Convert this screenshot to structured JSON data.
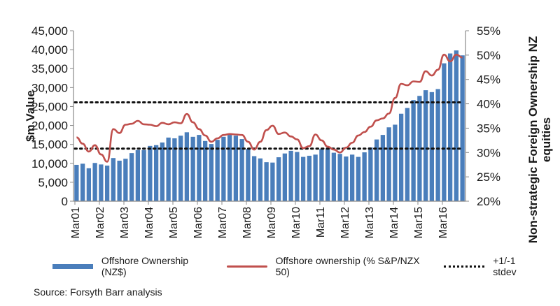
{
  "chart_data": {
    "type": "bar+line",
    "title": "",
    "xlabel": "",
    "ylabel": "$m Value",
    "y2label": "Non-strategic Foreign Ownership NZ equities",
    "ylim": [
      0,
      45000
    ],
    "y2lim": [
      0.2,
      0.55
    ],
    "yticks": [
      "0",
      "5,000",
      "10,000",
      "15,000",
      "20,000",
      "25,000",
      "30,000",
      "35,000",
      "40,000",
      "45,000"
    ],
    "y2ticks": [
      "20%",
      "25%",
      "30%",
      "35%",
      "40%",
      "45%",
      "50%",
      "55%"
    ],
    "xticks": [
      "Mar01",
      "Mar02",
      "Mar03",
      "Mar04",
      "Mar05",
      "Mar06",
      "Mar07",
      "Mar08",
      "Mar09",
      "Mar10",
      "Mar11",
      "Mar12",
      "Mar13",
      "Mar14",
      "Mar15",
      "Mar16"
    ],
    "frequency": "quarterly",
    "grid": false,
    "legend_position": "bottom",
    "series": [
      {
        "name": "Offshore Ownership (NZ$)",
        "type": "bar",
        "axis": "left",
        "color": "#4a7ebb",
        "values": [
          9600,
          9900,
          8700,
          10100,
          9700,
          9400,
          11400,
          10700,
          11200,
          12700,
          13500,
          13500,
          14600,
          14800,
          15500,
          16800,
          16600,
          17300,
          18200,
          17000,
          17500,
          15900,
          15100,
          16200,
          17000,
          17500,
          17300,
          16400,
          13800,
          11900,
          11300,
          10300,
          10200,
          11600,
          12600,
          13300,
          13000,
          11700,
          12000,
          12300,
          13800,
          13900,
          12800,
          12500,
          11800,
          12300,
          11700,
          12900,
          14200,
          16300,
          17500,
          19500,
          20200,
          23100,
          24600,
          26700,
          27800,
          29300,
          28800,
          29600,
          36400,
          39000,
          39800,
          38500
        ]
      },
      {
        "name": "Offshore ownership (% S&P/NZX 50)",
        "type": "line",
        "axis": "right",
        "color": "#c0504d",
        "values": [
          0.331,
          0.318,
          0.302,
          0.315,
          0.296,
          0.281,
          0.348,
          0.34,
          0.357,
          0.359,
          0.365,
          0.358,
          0.357,
          0.354,
          0.361,
          0.358,
          0.362,
          0.36,
          0.379,
          0.362,
          0.348,
          0.335,
          0.322,
          0.329,
          0.336,
          0.338,
          0.337,
          0.336,
          0.322,
          0.306,
          0.322,
          0.346,
          0.355,
          0.338,
          0.341,
          0.333,
          0.327,
          0.309,
          0.313,
          0.337,
          0.325,
          0.312,
          0.306,
          0.3,
          0.31,
          0.32,
          0.335,
          0.342,
          0.353,
          0.366,
          0.37,
          0.38,
          0.412,
          0.441,
          0.438,
          0.446,
          0.445,
          0.467,
          0.458,
          0.47,
          0.501,
          0.487,
          0.501,
          0.495
        ]
      },
      {
        "name": "+1/-1 stdev",
        "type": "reference-lines",
        "axis": "right",
        "color": "#111111",
        "values": [
          0.403,
          0.308
        ]
      }
    ]
  },
  "legend": {
    "bars": "Offshore Ownership (NZ$)",
    "line": "Offshore ownership (% S&P/NZX 50)",
    "stdev": "+1/-1 stdev"
  },
  "source": "Source: Forsyth Barr analysis"
}
